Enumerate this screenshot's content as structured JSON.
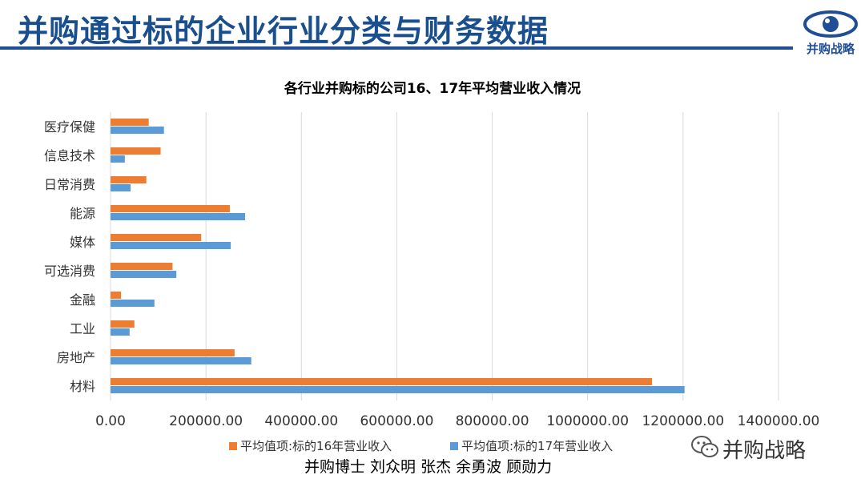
{
  "header": {
    "title": "并购通过标的企业行业分类与财务数据",
    "logo_text": "并购战略"
  },
  "watermark": {
    "text": "并购战略"
  },
  "credits": {
    "text": "并购博士 刘众明 张杰 余勇波 顾勋力"
  },
  "colors": {
    "series16": "#ed7d31",
    "series17": "#5b9bd5",
    "title_blue": "#1f4e96",
    "grid": "#d9d9d9"
  },
  "chart_data": {
    "type": "bar",
    "orientation": "horizontal",
    "title": "各行业并购标的公司16、17年平均营业收入情况",
    "categories": [
      "医疗保健",
      "信息技术",
      "日常消费",
      "能源",
      "媒体",
      "可选消费",
      "金融",
      "工业",
      "房地产",
      "材料"
    ],
    "series": [
      {
        "name": "平均值项:标的16年营业收入",
        "values": [
          80000,
          105000,
          75000,
          250000,
          190000,
          130000,
          22000,
          50000,
          260000,
          1135000
        ]
      },
      {
        "name": "平均值项:标的17年营业收入",
        "values": [
          112000,
          30000,
          42000,
          282000,
          252000,
          138000,
          92000,
          40000,
          295000,
          1203000
        ]
      }
    ],
    "xlim": [
      0,
      1400000
    ],
    "xticks": [
      "0.00",
      "200000.00",
      "400000.00",
      "600000.00",
      "800000.00",
      "1000000.00",
      "1200000.00",
      "1400000.00"
    ],
    "grid": true,
    "legend_position": "bottom"
  }
}
